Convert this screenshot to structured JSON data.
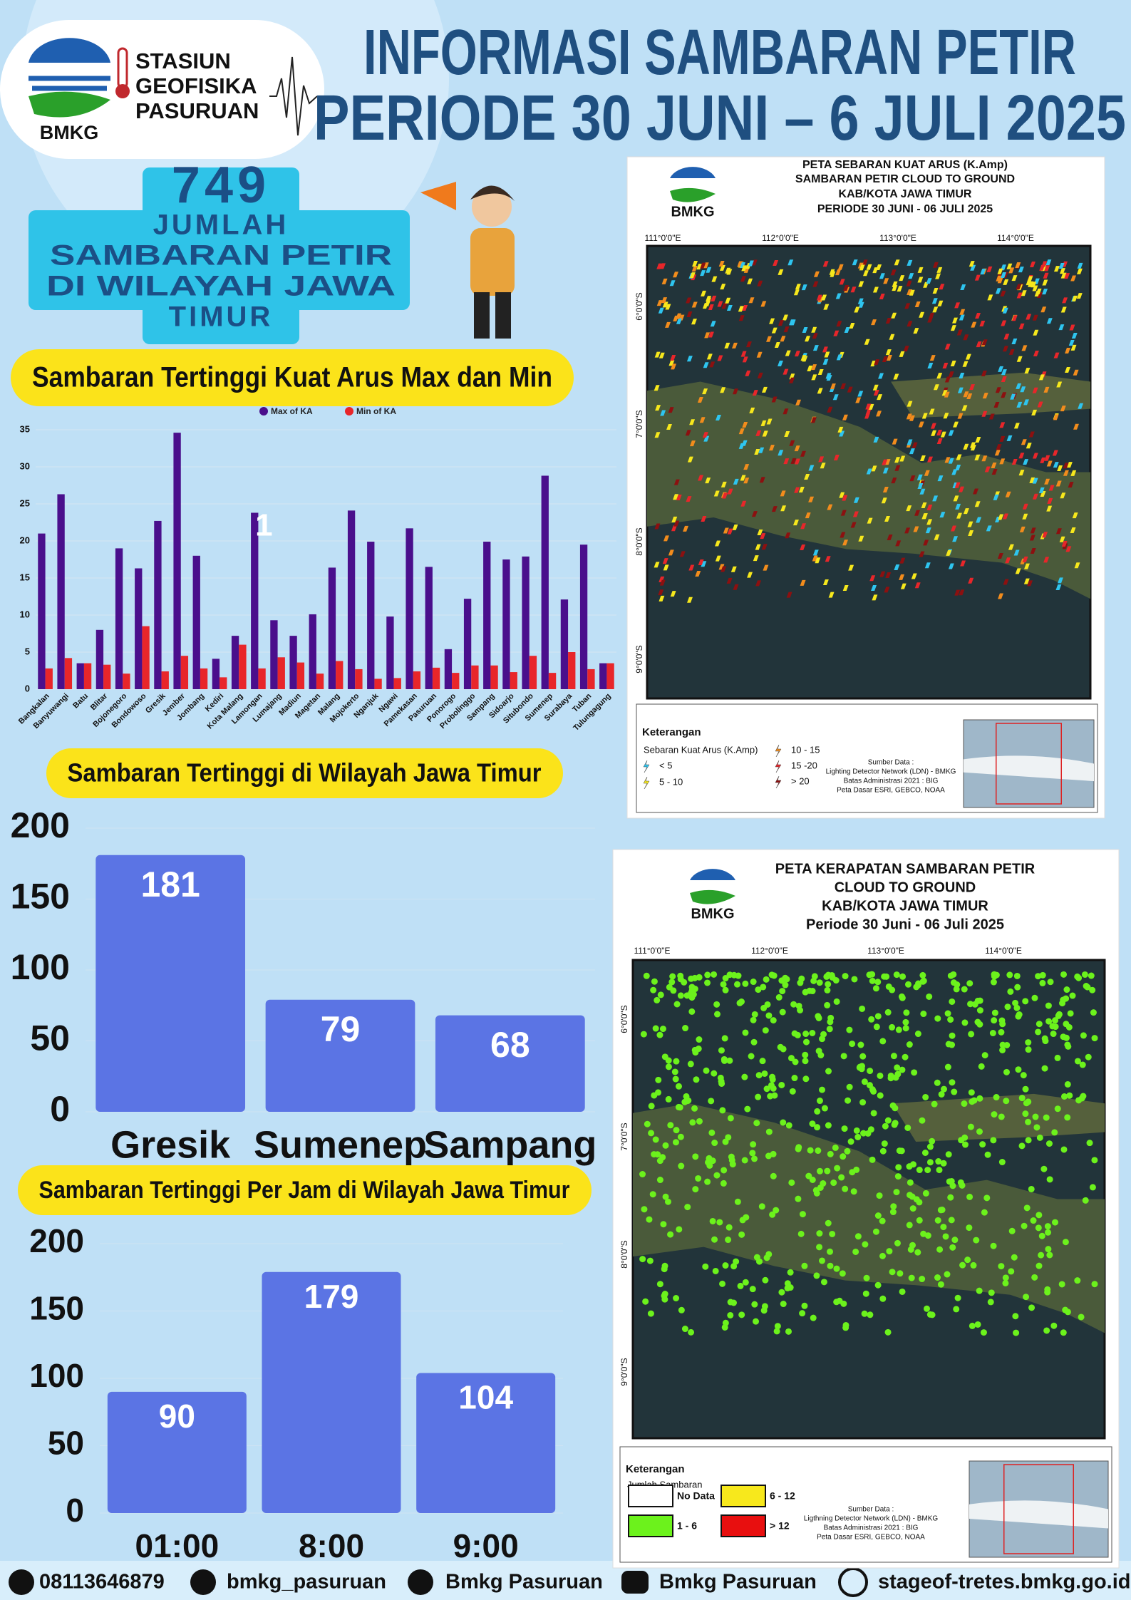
{
  "header": {
    "logo": "BMKG",
    "org_lines": [
      "STASIUN",
      "GEOFISIKA",
      "PASURUAN"
    ],
    "title": [
      "INFORMASI SAMBARAN PETIR",
      "PERIODE 30 JUNI – 6 JULI 2025"
    ]
  },
  "summary": {
    "count": 749,
    "label": [
      "JUMLAH",
      "SAMBARAN PETIR",
      "DI WILAYAH JAWA",
      "TIMUR"
    ]
  },
  "chart_data": [
    {
      "type": "bar",
      "title": "Sambaran Tertinggi Kuat Arus Max dan Min",
      "annotation": "1",
      "categories": [
        "Bangkalan",
        "Banyuwangi",
        "Batu",
        "Blitar",
        "Bojonegoro",
        "Bondowoso",
        "Gresik",
        "Jember",
        "Jombang",
        "Kediri",
        "Kota Malang",
        "Lamongan",
        "Lumajang",
        "Madiun",
        "Magetan",
        "Malang",
        "Mojokerto",
        "Nganjuk",
        "Ngawi",
        "Pamekasan",
        "Pasuruan",
        "Ponorogo",
        "Probolinggo",
        "Sampang",
        "Sidoarjo",
        "Situbondo",
        "Sumenep",
        "Surabaya",
        "Tuban",
        "Tulungagung"
      ],
      "series": [
        {
          "name": "Max of KA",
          "color": "#4a0f8c",
          "values": [
            21,
            26.3,
            3.5,
            8,
            19,
            16.3,
            22.7,
            34.6,
            18,
            4.1,
            7.2,
            23.8,
            9.3,
            7.2,
            10.1,
            16.4,
            24.1,
            19.9,
            9.8,
            21.7,
            16.5,
            5.4,
            12.2,
            19.9,
            17.5,
            17.9,
            28.8,
            12.1,
            19.5,
            3.5
          ]
        },
        {
          "name": "Min of KA",
          "color": "#e8262a",
          "values": [
            2.8,
            4.2,
            3.5,
            3.3,
            2.1,
            8.5,
            2.4,
            4.5,
            2.8,
            1.6,
            6,
            2.8,
            4.3,
            3.6,
            2.1,
            3.8,
            2.7,
            1.4,
            1.5,
            2.4,
            2.9,
            2.2,
            3.2,
            3.2,
            2.3,
            4.5,
            2.2,
            5,
            2.7,
            3.5
          ]
        }
      ],
      "ylim": [
        0,
        35
      ],
      "yticks": [
        0,
        5,
        10,
        15,
        20,
        25,
        30,
        35
      ],
      "grid": true
    },
    {
      "type": "bar",
      "title": "Sambaran Tertinggi di Wilayah Jawa Timur",
      "categories": [
        "Gresik",
        "Sumenep",
        "Sampang"
      ],
      "values": [
        181,
        79,
        68
      ],
      "color": "#5b74e4",
      "ylim": [
        0,
        200
      ],
      "yticks": [
        0,
        50,
        100,
        150,
        200
      ],
      "grid": true
    },
    {
      "type": "bar",
      "title": "Sambaran Tertinggi Per Jam di Wilayah Jawa Timur",
      "categories": [
        "01:00",
        "8:00",
        "9:00"
      ],
      "values": [
        90,
        179,
        104
      ],
      "color": "#5b74e4",
      "ylim": [
        0,
        200
      ],
      "yticks": [
        0,
        50,
        100,
        150,
        200
      ],
      "grid": true
    }
  ],
  "maps": [
    {
      "logo": "BMKG",
      "title": [
        "PETA SEBARAN KUAT ARUS (K.Amp)",
        "SAMBARAN PETIR CLOUD TO GROUND",
        "KAB/KOTA JAWA TIMUR",
        "PERIODE 30 JUNI - 06 JULI  2025"
      ],
      "lon_labels": [
        "111°0'0\"E",
        "112°0'0\"E",
        "113°0'0\"E",
        "114°0'0\"E"
      ],
      "lat_labels": [
        "6°0'0\"S",
        "7°0'0\"S",
        "8°0'0\"S",
        "9°0'0\"S"
      ],
      "legend_title": "Keterangan",
      "legend_subtitle": "Sebaran Kuat Arus (K.Amp)",
      "legend_items": [
        {
          "label": "< 5",
          "color": "#2ec5f0"
        },
        {
          "label": "5 - 10",
          "color": "#f7e81c"
        },
        {
          "label": "10 - 15",
          "color": "#f28c1c"
        },
        {
          "label": "15 -20",
          "color": "#e8262a"
        },
        {
          "label": "> 20",
          "color": "#8c1010"
        }
      ],
      "source": [
        "Sumber Data :",
        "Lighting Detector Network (LDN) - BMKG",
        "Batas Administrasi 2021 : BIG",
        "Peta Dasar ESRI, GEBCO, NOAA"
      ]
    },
    {
      "logo": "BMKG",
      "title": [
        "PETA KERAPATAN SAMBARAN PETIR",
        "CLOUD TO GROUND",
        "KAB/KOTA JAWA TIMUR",
        "Periode  30 Juni - 06 Juli 2025"
      ],
      "lon_labels": [
        "111°0'0\"E",
        "112°0'0\"E",
        "113°0'0\"E",
        "114°0'0\"E"
      ],
      "lat_labels": [
        "6°0'0\"S",
        "7°0'0\"S",
        "8°0'0\"S",
        "9°0'0\"S"
      ],
      "legend_title": "Keterangan",
      "legend_subtitle": "Jumlah Sambaran",
      "legend_items": [
        {
          "label": "No Data",
          "color": "#ffffff"
        },
        {
          "label": "1 - 6",
          "color": "#6cf21c"
        },
        {
          "label": "6 - 12",
          "color": "#f7e81c"
        },
        {
          "label": "> 12",
          "color": "#e80f0f"
        }
      ],
      "source": [
        "Sumber Data :",
        "Ligthning Detector Network (LDN) - BMKG",
        "Batas Administrasi 2021  : BIG",
        "Peta Dasar ESRI, GEBCO, NOAA"
      ]
    }
  ],
  "footer": [
    "08113646879",
    "bmkg_pasuruan",
    "Bmkg Pasuruan",
    "Bmkg Pasuruan",
    "stageof-tretes.bmkg.go.id"
  ]
}
